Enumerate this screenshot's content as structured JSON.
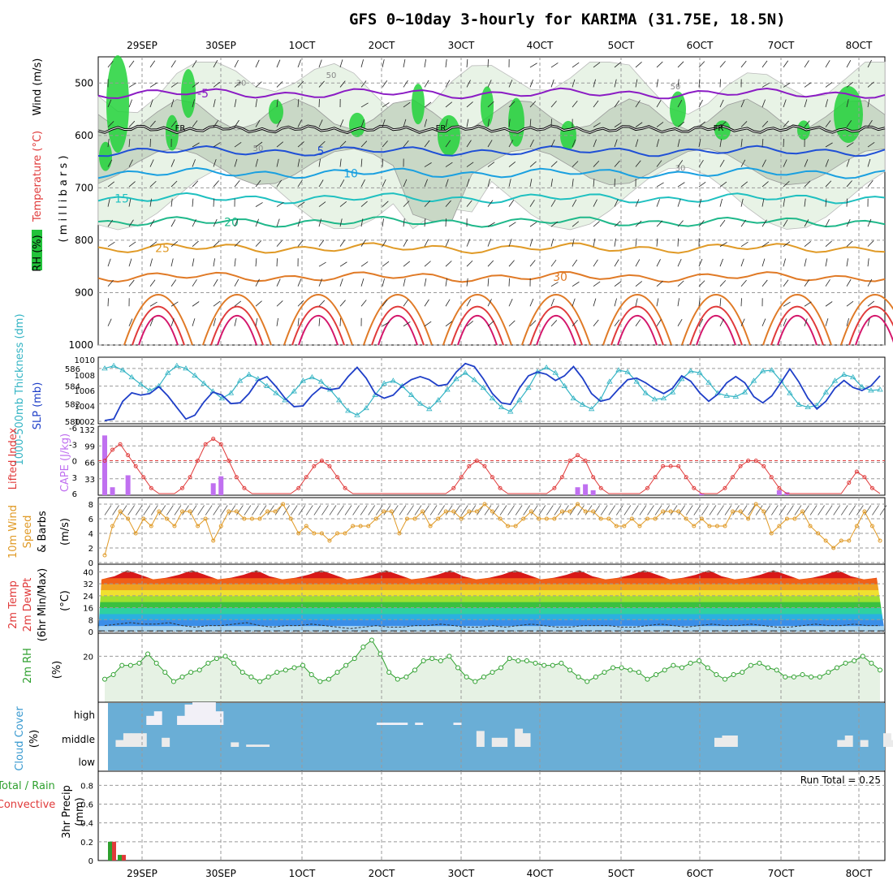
{
  "title": "GFS 0~10day 3-hourly for KARIMA (31.75E, 18.5N)",
  "chart_data": [
    {
      "panel": "upper_air",
      "type": "contour",
      "ylabel_parts": [
        "RH (%)",
        "Temperature (°C)",
        "Wind (m/s)"
      ],
      "yaxis_title": "( m i l l i b a r s )",
      "y_ticks": [
        "500",
        "600",
        "700",
        "800",
        "900",
        "1000"
      ],
      "ylim": [
        450,
        1000
      ],
      "dates": [
        "29SEP",
        "30SEP",
        "1OCT",
        "2OCT",
        "3OCT",
        "4OCT",
        "5OCT",
        "6OCT",
        "7OCT",
        "8OCT"
      ],
      "freezing_label": "FR",
      "rh_labels": [
        "50",
        "30",
        "50",
        "30",
        "50"
      ],
      "isotherms": [
        {
          "label": "-5",
          "level": 520,
          "color": "#8b1cc4"
        },
        {
          "label": "5",
          "level": 630,
          "color": "#1f4fd6"
        },
        {
          "label": "10",
          "level": 672,
          "color": "#1aa0e0"
        },
        {
          "label": "15",
          "level": 720,
          "color": "#1fc0c0"
        },
        {
          "label": "20",
          "level": 765,
          "color": "#1fb88a"
        },
        {
          "label": "25",
          "level": 815,
          "color": "#e09a26"
        },
        {
          "label": "30",
          "level": 870,
          "color": "#e07a26"
        }
      ]
    },
    {
      "panel": "thickness_slp",
      "type": "line",
      "ylabel_left": "1000-500mb Thickness (dm)",
      "ylabel_right": "SLP (mb)",
      "left_ticks": [
        "586",
        "584",
        "582",
        "580"
      ],
      "right_ticks": [
        "1010",
        "1008",
        "1006",
        "1004",
        "1002"
      ],
      "series": [
        {
          "name": "Thickness (dm)",
          "values": [
            586,
            586.3,
            585.8,
            585,
            584.2,
            583.5,
            584,
            585.5,
            586.3,
            586,
            585.2,
            584.3,
            583.4,
            582.6,
            583.2,
            584.6,
            585.3,
            584.8,
            584,
            583.2,
            582.4,
            583.4,
            584.6,
            585,
            584.5,
            583.6,
            582.4,
            581.2,
            580.7,
            581.5,
            583,
            584.3,
            584.6,
            584,
            583,
            582,
            581.4,
            582.4,
            583.6,
            584.8,
            585.5,
            584.7,
            583.8,
            582.6,
            581.6,
            581.1,
            582.4,
            583.8,
            585.6,
            586.1,
            585.5,
            584,
            582.6,
            581.9,
            581.4,
            582.5,
            584.5,
            585.8,
            585.6,
            584.5,
            583.2,
            582.5,
            582.6,
            583.3,
            584.8,
            585.7,
            585.5,
            584.4,
            583.2,
            582.9,
            582.8,
            583.3,
            584.6,
            585.7,
            585.8,
            584.6,
            583.2,
            581.9,
            581.6,
            581.8,
            583.3,
            584.6,
            585.3,
            585,
            583.9,
            583.5,
            583.6
          ],
          "color": "#34b4c4"
        },
        {
          "name": "SLP (mb)",
          "values": [
            1002.1,
            1002.3,
            1004.6,
            1005.7,
            1005.4,
            1005.6,
            1006.5,
            1005.3,
            1003.8,
            1002.3,
            1002.8,
            1004.5,
            1005.8,
            1005.4,
            1004.3,
            1004.4,
            1005.6,
            1007.3,
            1007.8,
            1006.5,
            1005,
            1003.9,
            1004,
            1005.4,
            1006.4,
            1006.1,
            1006.3,
            1007.8,
            1009,
            1007.6,
            1005.6,
            1005,
            1005.4,
            1006.6,
            1007.4,
            1007.8,
            1007.4,
            1006.6,
            1006.8,
            1008.4,
            1009.5,
            1009.1,
            1007.5,
            1005.6,
            1004.4,
            1004.2,
            1006.3,
            1007.9,
            1008.4,
            1008.1,
            1007.3,
            1007.9,
            1009.1,
            1007.6,
            1005.6,
            1004.6,
            1004.9,
            1006.2,
            1007.4,
            1007.6,
            1007,
            1006.2,
            1005.6,
            1006.3,
            1007.9,
            1007.2,
            1005.7,
            1004.6,
            1005.5,
            1007,
            1007.8,
            1007,
            1005.2,
            1004.4,
            1005.3,
            1007,
            1008.8,
            1007.1,
            1005,
            1003.6,
            1004.6,
            1006.3,
            1007.3,
            1006.4,
            1006,
            1006.6,
            1007.9
          ],
          "color": "#1f3fc8"
        }
      ]
    },
    {
      "panel": "instability",
      "type": "bar+line",
      "ylabel_left": "Lifted Index",
      "ylabel_right": "CAPE (J/kg)",
      "li_ticks": [
        "-6",
        "-3",
        "0",
        "3",
        "6"
      ],
      "cape_ticks": [
        "132",
        "99",
        "66",
        "33"
      ],
      "cape_values": [
        120,
        16,
        0,
        40,
        0,
        0,
        0,
        0,
        0,
        0,
        0,
        0,
        0,
        0,
        24,
        38,
        0,
        0,
        0,
        0,
        0,
        0,
        0,
        0,
        0,
        0,
        0,
        0,
        0,
        0,
        0,
        0,
        0,
        0,
        0,
        0,
        0,
        0,
        0,
        0,
        0,
        0,
        0,
        0,
        0,
        0,
        0,
        0,
        0,
        0,
        0,
        0,
        0,
        0,
        0,
        0,
        0,
        0,
        0,
        0,
        0,
        16,
        22,
        10,
        0,
        0,
        0,
        0,
        0,
        0,
        0,
        0,
        0,
        0,
        0,
        0,
        0,
        4,
        0,
        0,
        0,
        0,
        0,
        0,
        0,
        0,
        0,
        10,
        6,
        0,
        0,
        0,
        0,
        0,
        0,
        0,
        0,
        0,
        0,
        0,
        0
      ],
      "li_values": [
        0,
        -2,
        -3,
        -1,
        1,
        3,
        5,
        6,
        6,
        6,
        5,
        3,
        0,
        -3,
        -4,
        -3,
        0,
        3,
        5,
        6,
        6,
        6,
        6,
        6,
        6,
        5,
        3,
        1,
        0,
        1,
        3,
        5,
        6,
        6,
        6,
        6,
        6,
        6,
        6,
        6,
        6,
        6,
        6,
        6,
        6,
        5,
        3,
        1,
        0,
        1,
        3,
        5,
        6,
        6,
        6,
        6,
        6,
        6,
        5,
        3,
        0,
        -1,
        0,
        3,
        5,
        6,
        6,
        6,
        6,
        6,
        5,
        3,
        1,
        1,
        1,
        3,
        5,
        6,
        6,
        6,
        5,
        3,
        1,
        0,
        0,
        1,
        3,
        5,
        6,
        6,
        6,
        6,
        6,
        6,
        6,
        6,
        4,
        2,
        3,
        5,
        6
      ]
    },
    {
      "panel": "wind10m",
      "type": "line",
      "ylabel": [
        "10m Wind",
        "Speed",
        "& Barbs",
        "(m/s)"
      ],
      "y_ticks": [
        "8",
        "6",
        "4",
        "2",
        "0"
      ],
      "ylim": [
        0,
        8
      ],
      "values": [
        1,
        5,
        7,
        6,
        4,
        6,
        5,
        7,
        6,
        5,
        7,
        7,
        5,
        6,
        3,
        5,
        7,
        7,
        6,
        6,
        6,
        7,
        7,
        8,
        6,
        4,
        5,
        4,
        4,
        3,
        4,
        4,
        5,
        5,
        5,
        6,
        7,
        7,
        4,
        6,
        6,
        7,
        5,
        6,
        7,
        7,
        6,
        7,
        7,
        8,
        7,
        6,
        5,
        5,
        6,
        7,
        6,
        6,
        6,
        7,
        7,
        8,
        7,
        7,
        6,
        6,
        5,
        5,
        6,
        5,
        6,
        6,
        7,
        7,
        7,
        6,
        5,
        6,
        5,
        5,
        5,
        7,
        7,
        6,
        8,
        7,
        4,
        5,
        6,
        6,
        7,
        5,
        4,
        3,
        2,
        3,
        3,
        5,
        7,
        5,
        3
      ]
    },
    {
      "panel": "temperature",
      "type": "area",
      "ylabel": [
        "2m Temp",
        "2m DewPt",
        "(6hr Min/Max)"
      ],
      "yunit": "(°C)",
      "y_ticks": [
        "40",
        "32",
        "24",
        "16",
        "8",
        "0"
      ],
      "ylim": [
        0,
        44
      ],
      "temp_max": [
        35,
        37,
        41,
        38,
        35,
        36,
        38,
        41,
        38,
        35,
        36,
        38,
        41,
        37,
        35,
        36,
        38,
        41,
        38,
        35,
        36,
        38,
        41,
        38,
        35,
        36,
        38,
        41,
        37,
        35,
        36,
        38,
        41,
        38,
        35,
        36,
        38,
        41,
        37,
        35,
        36,
        38,
        41,
        38,
        35,
        36,
        38,
        41,
        37,
        35,
        36,
        38,
        41,
        38,
        35,
        36,
        38,
        41,
        37,
        35,
        36
      ],
      "dewpoint": [
        4,
        5,
        6,
        5,
        5,
        6,
        4,
        3,
        4,
        4,
        5,
        6,
        4,
        3,
        4,
        4,
        5,
        4,
        3,
        2,
        3,
        4,
        3,
        3,
        4,
        4,
        5,
        4,
        3,
        3,
        4,
        3,
        4,
        5,
        4,
        3,
        3,
        4,
        4,
        4,
        3,
        3,
        4,
        5,
        4,
        3,
        4,
        5,
        4,
        4,
        5,
        4,
        3,
        3,
        4,
        5,
        4,
        4,
        5,
        4,
        4
      ]
    },
    {
      "panel": "rh2m",
      "type": "line",
      "ylabel": "2m RH",
      "yunit": "(%)",
      "y_ticks": [
        "20"
      ],
      "ylim": [
        0,
        30
      ],
      "values": [
        10,
        12,
        16,
        16,
        17,
        21,
        17,
        13,
        9,
        11,
        13,
        14,
        17,
        19,
        20,
        17,
        13,
        11,
        9,
        11,
        13,
        14,
        15,
        16,
        12,
        9,
        10,
        13,
        16,
        19,
        24,
        27,
        21,
        13,
        10,
        11,
        14,
        18,
        19,
        18,
        20,
        15,
        11,
        9,
        11,
        13,
        15,
        19,
        18,
        18,
        17,
        16,
        16,
        17,
        14,
        11,
        9,
        11,
        13,
        15,
        15,
        14,
        13,
        10,
        12,
        14,
        16,
        15,
        17,
        18,
        15,
        12,
        10,
        12,
        13,
        16,
        17,
        15,
        14,
        11,
        11,
        12,
        11,
        11,
        13,
        15,
        17,
        18,
        20,
        17,
        14
      ]
    },
    {
      "panel": "cloud",
      "type": "heatmap",
      "ylabel": "Cloud Cover",
      "yunit": "(%)",
      "layers": [
        "high",
        "middle",
        "low"
      ],
      "high_cover": [
        0,
        0,
        0,
        0,
        0,
        40,
        60,
        0,
        0,
        40,
        90,
        100,
        100,
        100,
        60,
        0,
        0,
        0,
        0,
        0,
        0,
        0,
        0,
        0,
        0,
        0,
        0,
        0,
        0,
        0,
        0,
        0,
        0,
        0,
        0,
        10,
        10,
        10,
        10,
        0,
        10,
        0,
        0,
        0,
        0,
        10,
        0,
        0,
        0,
        0,
        0,
        0,
        0,
        0,
        0,
        0,
        0,
        0,
        0,
        0,
        0,
        0,
        0,
        0,
        0,
        0,
        0,
        0,
        0,
        0,
        0,
        0,
        0,
        0,
        0,
        0,
        0,
        0,
        0,
        0,
        0,
        0,
        0,
        0,
        0,
        0,
        0,
        0,
        0,
        0,
        0,
        0,
        0,
        0,
        0,
        0,
        0,
        0,
        0,
        0,
        0
      ],
      "mid_cover": [
        0,
        30,
        60,
        60,
        60,
        0,
        0,
        40,
        0,
        0,
        0,
        0,
        0,
        0,
        0,
        0,
        20,
        0,
        10,
        10,
        10,
        0,
        0,
        0,
        0,
        0,
        0,
        0,
        0,
        0,
        0,
        0,
        0,
        0,
        0,
        0,
        0,
        0,
        0,
        0,
        0,
        0,
        0,
        0,
        0,
        0,
        0,
        0,
        70,
        0,
        40,
        40,
        0,
        80,
        60,
        0,
        0,
        0,
        0,
        0,
        0,
        0,
        0,
        0,
        0,
        0,
        0,
        0,
        0,
        0,
        0,
        0,
        0,
        0,
        0,
        0,
        0,
        0,
        0,
        40,
        50,
        50,
        0,
        0,
        0,
        0,
        0,
        0,
        0,
        0,
        0,
        0,
        0,
        0,
        0,
        30,
        50,
        0,
        30,
        0,
        0,
        60,
        30,
        60,
        10,
        0
      ]
    },
    {
      "panel": "precip",
      "type": "bar",
      "ylabel_left": [
        "Total / Rain",
        "Convective"
      ],
      "ylabel": [
        "3hr Precip",
        "(mm)"
      ],
      "y_ticks": [
        "0.8",
        "0.6",
        "0.4",
        "0.2",
        "0"
      ],
      "ylim": [
        0,
        0.95
      ],
      "run_total_label": "Run Total = 0.25",
      "dates": [
        "29SEP",
        "30SEP",
        "1OCT",
        "2OCT",
        "3OCT",
        "4OCT",
        "5OCT",
        "6OCT",
        "7OCT",
        "8OCT"
      ],
      "total": [
        0.2,
        0.06
      ],
      "convective": [
        0.2,
        0.06
      ]
    }
  ]
}
